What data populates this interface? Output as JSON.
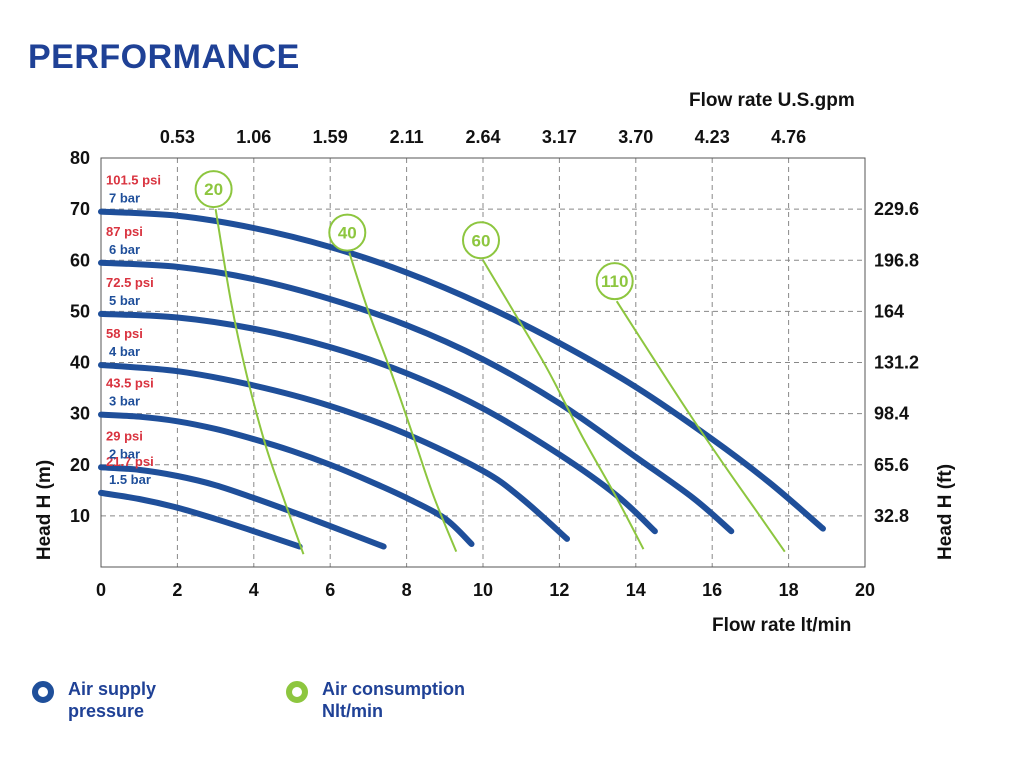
{
  "title": "PERFORMANCE",
  "colors": {
    "pressure": "#1f4f9a",
    "consumption": "#8dc63f",
    "psi_label": "#d9333f",
    "bar_label": "#1f4f9a",
    "title": "#1f4196"
  },
  "chart_data": {
    "type": "line",
    "xlabel": "Flow rate  lt/min",
    "ylabel_left": "Head H (m)",
    "ylabel_right": "Head H (ft)",
    "xlabel_top": "Flow rate U.S.gpm",
    "xlim": [
      0,
      20
    ],
    "ylim": [
      0,
      80
    ],
    "grid": true,
    "x_ticks": [
      "0",
      "2",
      "4",
      "6",
      "8",
      "10",
      "12",
      "14",
      "16",
      "18",
      "20"
    ],
    "y_ticks": [
      "10",
      "20",
      "30",
      "40",
      "50",
      "60",
      "70",
      "80"
    ],
    "top_ticks": [
      "0.53",
      "1.06",
      "1.59",
      "2.11",
      "2.64",
      "3.17",
      "3.70",
      "4.23",
      "4.76"
    ],
    "right_ticks": [
      "32.8",
      "65.6",
      "98.4",
      "131.2",
      "164",
      "196.8",
      "229.6"
    ],
    "pressure_series": [
      {
        "psi": "21.7 psi",
        "bar": "1.5 bar",
        "x": [
          0,
          1,
          2,
          3,
          4,
          5.2
        ],
        "y": [
          14.5,
          13.3,
          11.6,
          9.4,
          7.0,
          4.0
        ]
      },
      {
        "psi": "29 psi",
        "bar": "2 bar",
        "x": [
          0,
          1,
          2,
          3,
          4,
          5,
          6,
          7.4
        ],
        "y": [
          19.5,
          19.0,
          17.8,
          16.0,
          13.5,
          10.8,
          8.0,
          4.0
        ]
      },
      {
        "psi": "43.5 psi",
        "bar": "3 bar",
        "x": [
          0,
          1,
          2,
          3,
          4,
          5,
          6,
          7,
          8,
          9,
          9.7
        ],
        "y": [
          29.8,
          29.4,
          28.5,
          27.0,
          25.0,
          22.7,
          20.0,
          16.9,
          13.5,
          9.5,
          4.5
        ]
      },
      {
        "psi": "58 psi",
        "bar": "4 bar",
        "x": [
          0,
          2,
          4,
          6,
          8,
          10,
          11,
          12.2
        ],
        "y": [
          39.5,
          38.3,
          35.5,
          31.5,
          26.0,
          18.8,
          13.5,
          5.5
        ]
      },
      {
        "psi": "72.5 psi",
        "bar": "5 bar",
        "x": [
          0,
          2,
          4,
          6,
          8,
          10,
          12,
          13.5,
          14.5
        ],
        "y": [
          49.5,
          48.8,
          46.6,
          43.0,
          37.9,
          31.0,
          22.0,
          14.0,
          7.0
        ]
      },
      {
        "psi": "87 psi",
        "bar": "6 bar",
        "x": [
          0,
          2,
          4,
          6,
          8,
          10,
          12,
          14,
          15.5,
          16.5
        ],
        "y": [
          59.5,
          58.7,
          56.3,
          52.4,
          47.3,
          40.6,
          32.0,
          21.5,
          13.5,
          7.0
        ]
      },
      {
        "psi": "101.5 psi",
        "bar": "7 bar",
        "x": [
          0,
          2,
          4,
          6,
          8,
          10,
          12,
          14,
          16,
          17.5,
          18.9
        ],
        "y": [
          69.5,
          68.7,
          66.3,
          62.6,
          57.6,
          51.3,
          43.8,
          35.2,
          25.0,
          16.5,
          7.5
        ]
      }
    ],
    "consumption_series": [
      {
        "name": "20",
        "x": [
          3.0,
          3.4,
          3.8,
          4.3,
          4.8,
          5.3
        ],
        "y": [
          70.0,
          52.0,
          38.0,
          24.0,
          13.0,
          2.5
        ]
      },
      {
        "name": "40",
        "x": [
          6.5,
          7.0,
          7.6,
          8.2,
          8.7,
          9.3
        ],
        "y": [
          61.5,
          50.0,
          38.0,
          25.0,
          14.0,
          3.0
        ]
      },
      {
        "name": "60",
        "x": [
          10.0,
          10.8,
          11.7,
          12.6,
          13.5,
          14.2
        ],
        "y": [
          60.0,
          50.0,
          38.5,
          25.5,
          13.5,
          3.5
        ]
      },
      {
        "name": "110",
        "x": [
          13.5,
          14.4,
          15.4,
          16.4,
          17.2,
          17.9
        ],
        "y": [
          52.0,
          41.5,
          30.0,
          19.0,
          10.5,
          3.0
        ]
      }
    ],
    "bubble_labels": [
      "20",
      "40",
      "60",
      "110"
    ]
  },
  "legend": {
    "pressure_line1": "Air supply",
    "pressure_line2": "pressure",
    "consumption_line1": "Air consumption",
    "consumption_line2": "Nlt/min"
  }
}
